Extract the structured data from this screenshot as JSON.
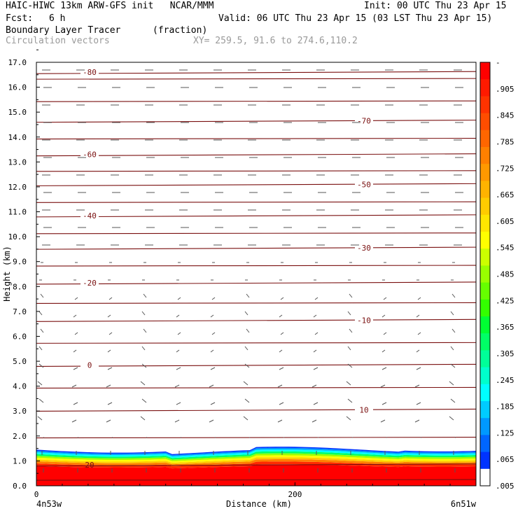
{
  "header": {
    "line1_left": "HAIC-HIWC 13km ARW-GFS init   NCAR/MMM",
    "line1_right": "Init: 00 UTC Thu 23 Apr 15",
    "fcst_label": "Fcst:",
    "fcst_value": "6 h",
    "valid": "Valid: 06 UTC Thu 23 Apr 15 (03 LST Thu 23 Apr 15)",
    "field": "Boundary Layer Tracer",
    "units": "(fraction)",
    "vectors": "Circulation vectors",
    "xy": "XY= 259.5, 91.6 to 274.6,110.2"
  },
  "chart_data": {
    "type": "heatmap",
    "ylabel": "Height (km)",
    "xlabel": "Distance (km)",
    "ylim": [
      0,
      17
    ],
    "xlim": [
      0,
      340
    ],
    "y_ticks": [
      "0.0",
      "1.0",
      "2.0",
      "3.0",
      "4.0",
      "5.0",
      "6.0",
      "7.0",
      "8.0",
      "9.0",
      "10.0",
      "11.0",
      "12.0",
      "13.0",
      "14.0",
      "15.0",
      "16.0",
      "17.0"
    ],
    "x_ticks": [
      {
        "value": 0,
        "label": "0"
      },
      {
        "value": 200,
        "label": "200"
      }
    ],
    "x_endpoints": {
      "left": "4n53w",
      "right": "6n51w"
    },
    "colorbar": {
      "labels": [
        "-",
        ".905",
        ".845",
        ".785",
        ".725",
        ".665",
        ".605",
        ".545",
        ".485",
        ".425",
        ".365",
        ".305",
        ".245",
        ".185",
        ".125",
        ".065",
        ".005"
      ],
      "colors": [
        "#ff0000",
        "#ff1a00",
        "#ff3300",
        "#ff4d00",
        "#ff6600",
        "#ff8000",
        "#ff9900",
        "#ffb300",
        "#ffcc00",
        "#ffe600",
        "#ffff00",
        "#ccff00",
        "#99ff00",
        "#66ff00",
        "#33ff00",
        "#00ff33",
        "#00ff66",
        "#00ff99",
        "#00ffcc",
        "#00ffff",
        "#00ccff",
        "#0099ff",
        "#0066ff",
        "#0033ff",
        "#ffffff"
      ]
    },
    "tracer_field": {
      "boundary_layer_top_km": 1.45,
      "surface_value": 1.0,
      "description_levels": [
        0.005,
        0.065,
        0.125,
        0.185,
        0.245,
        0.305,
        0.365,
        0.425,
        0.485,
        0.545,
        0.605,
        0.665,
        0.725,
        0.785,
        0.845,
        0.905
      ]
    },
    "temperature_contours": [
      {
        "label": "20",
        "height_km": 0.85
      },
      {
        "label": "10",
        "height_km": 3.05
      },
      {
        "label": "0",
        "height_km": 4.85
      },
      {
        "label": "-10",
        "height_km": 6.65
      },
      {
        "label": "-20",
        "height_km": 8.15
      },
      {
        "label": "-30",
        "height_km": 9.55
      },
      {
        "label": "-40",
        "height_km": 10.85
      },
      {
        "label": "-50",
        "height_km": 12.1
      },
      {
        "label": "-60",
        "height_km": 13.3
      },
      {
        "label": "-70",
        "height_km": 14.65
      },
      {
        "label": "-80",
        "height_km": 16.6
      }
    ],
    "unlabeled_contours_km": [
      0.25,
      1.95,
      3.95,
      5.75,
      7.35,
      8.85,
      10.15,
      11.4,
      12.65,
      13.95,
      15.45,
      16.35
    ]
  }
}
